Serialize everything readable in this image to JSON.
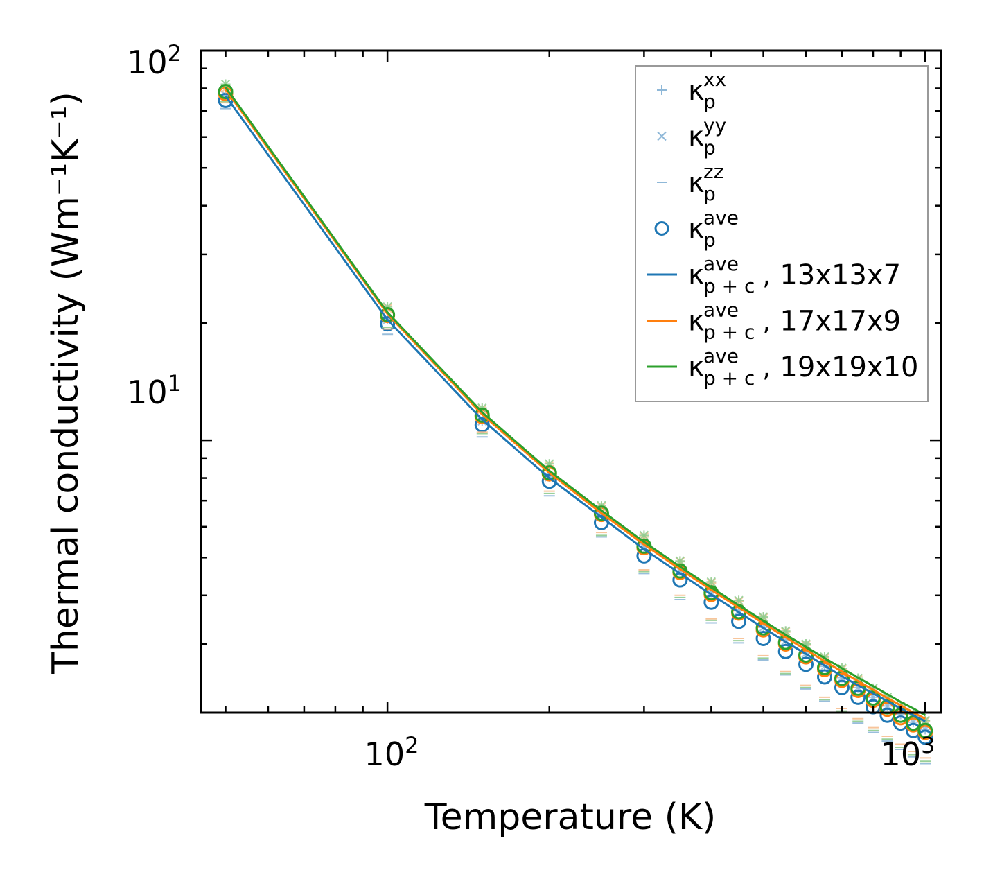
{
  "chart_data": {
    "type": "line",
    "title": "",
    "xlabel": "Temperature (K)",
    "ylabel": "Thermal conductivity (Wm⁻¹K⁻¹)",
    "xscale": "log",
    "yscale": "log",
    "xlim": [
      45,
      1070
    ],
    "ylim": [
      2.0,
      100
    ],
    "x_tick_labels": [
      {
        "base": "10",
        "exp": "2",
        "value": 100
      },
      {
        "base": "10",
        "exp": "3",
        "value": 1000
      }
    ],
    "y_tick_labels": [
      {
        "base": "10",
        "exp": "1",
        "value": 10
      },
      {
        "base": "10",
        "exp": "2",
        "value": 100
      }
    ],
    "legend_position": "top-right",
    "legend": [
      {
        "symbol": "+",
        "main": "κ",
        "sup": "xx",
        "sub": "p",
        "suffix": "",
        "color": "#8fb8d8"
      },
      {
        "symbol": "x",
        "main": "κ",
        "sup": "yy",
        "sub": "p",
        "suffix": "",
        "color": "#8fb8d8"
      },
      {
        "symbol": "_",
        "main": "κ",
        "sup": "zz",
        "sub": "p",
        "suffix": "",
        "color": "#8fb8d8"
      },
      {
        "symbol": "o",
        "main": "κ",
        "sup": "ave",
        "sub": "p",
        "suffix": "",
        "color": "#1f77b4"
      },
      {
        "symbol": "line",
        "main": "κ",
        "sup": "ave",
        "sub": "p + c",
        "suffix": ", 13x13x7",
        "color": "#1f77b4"
      },
      {
        "symbol": "line",
        "main": "κ",
        "sup": "ave",
        "sub": "p + c",
        "suffix": ", 17x17x9",
        "color": "#ff7f0e"
      },
      {
        "symbol": "line",
        "main": "κ",
        "sup": "ave",
        "sub": "p + c",
        "suffix": ", 19x19x10",
        "color": "#2ca02c"
      }
    ],
    "x": [
      50,
      100,
      150,
      200,
      250,
      300,
      350,
      400,
      450,
      500,
      550,
      600,
      650,
      700,
      750,
      800,
      850,
      900,
      950,
      1000
    ],
    "series": [
      {
        "name": "13x13x7",
        "color": "#1f77b4",
        "xx": [
          77.0,
          20.4,
          11.2,
          8.05,
          6.4,
          5.32,
          4.62,
          4.07,
          3.65,
          3.31,
          3.06,
          2.84,
          2.63,
          2.46,
          2.32,
          2.19,
          2.08,
          1.98,
          1.89,
          1.81
        ],
        "yy": [
          77.0,
          20.4,
          11.2,
          8.05,
          6.4,
          5.32,
          4.62,
          4.07,
          3.65,
          3.31,
          3.06,
          2.84,
          2.63,
          2.46,
          2.32,
          2.19,
          2.08,
          1.98,
          1.89,
          1.81
        ],
        "zz": [
          71.0,
          18.7,
          10.2,
          7.2,
          5.65,
          4.55,
          3.9,
          3.4,
          3.02,
          2.73,
          2.5,
          2.3,
          2.14,
          2.0,
          1.88,
          1.78,
          1.69,
          1.61,
          1.54,
          1.48
        ],
        "ave": [
          74.5,
          19.9,
          10.95,
          7.85,
          6.15,
          5.05,
          4.38,
          3.84,
          3.43,
          3.1,
          2.87,
          2.66,
          2.47,
          2.32,
          2.19,
          2.07,
          1.97,
          1.88,
          1.8,
          1.73
        ],
        "pc": [
          76.5,
          20.4,
          11.3,
          8.0,
          6.35,
          5.25,
          4.55,
          4.02,
          3.62,
          3.3,
          3.04,
          2.83,
          2.64,
          2.48,
          2.35,
          2.24,
          2.14,
          2.05,
          1.97,
          1.9
        ]
      },
      {
        "name": "17x17x9",
        "color": "#ff7f0e",
        "xx": [
          80.0,
          21.8,
          12.0,
          8.6,
          6.75,
          5.65,
          4.88,
          4.3,
          3.86,
          3.5,
          3.22,
          2.98,
          2.76,
          2.58,
          2.43,
          2.29,
          2.17,
          2.07,
          1.98,
          1.9
        ],
        "yy": [
          80.0,
          21.8,
          12.0,
          8.6,
          6.75,
          5.65,
          4.88,
          4.3,
          3.86,
          3.5,
          3.22,
          2.98,
          2.76,
          2.58,
          2.43,
          2.29,
          2.17,
          2.07,
          1.98,
          1.9
        ],
        "zz": [
          73.5,
          19.3,
          10.5,
          7.4,
          5.8,
          4.65,
          4.0,
          3.48,
          3.1,
          2.8,
          2.55,
          2.35,
          2.19,
          2.05,
          1.93,
          1.83,
          1.74,
          1.66,
          1.59,
          1.53
        ],
        "ave": [
          77.5,
          20.9,
          11.5,
          8.2,
          6.45,
          5.3,
          4.58,
          4.02,
          3.6,
          3.26,
          3.0,
          2.78,
          2.58,
          2.42,
          2.28,
          2.15,
          2.04,
          1.94,
          1.86,
          1.78
        ],
        "pc": [
          79.5,
          21.1,
          11.65,
          8.25,
          6.5,
          5.4,
          4.67,
          4.13,
          3.72,
          3.39,
          3.12,
          2.9,
          2.71,
          2.55,
          2.41,
          2.29,
          2.18,
          2.09,
          2.0,
          1.93
        ]
      },
      {
        "name": "19x19x10",
        "color": "#2ca02c",
        "xx": [
          82.0,
          22.0,
          12.1,
          8.7,
          6.8,
          5.7,
          4.9,
          4.33,
          3.88,
          3.52,
          3.24,
          3.0,
          2.78,
          2.6,
          2.45,
          2.31,
          2.19,
          2.08,
          1.99,
          1.91
        ],
        "yy": [
          82.0,
          22.0,
          12.1,
          8.7,
          6.8,
          5.7,
          4.9,
          4.33,
          3.88,
          3.52,
          3.24,
          3.0,
          2.78,
          2.6,
          2.45,
          2.31,
          2.19,
          2.08,
          1.99,
          1.91
        ],
        "zz": [
          74.0,
          19.5,
          10.4,
          7.3,
          5.7,
          4.6,
          3.95,
          3.45,
          3.06,
          2.76,
          2.52,
          2.32,
          2.16,
          2.02,
          1.9,
          1.8,
          1.71,
          1.63,
          1.56,
          1.5
        ],
        "ave": [
          78.5,
          21.0,
          11.6,
          8.25,
          6.5,
          5.35,
          4.62,
          4.06,
          3.63,
          3.3,
          3.03,
          2.81,
          2.61,
          2.45,
          2.31,
          2.18,
          2.07,
          1.97,
          1.88,
          1.8
        ],
        "pc": [
          80.5,
          21.3,
          11.8,
          8.35,
          6.6,
          5.48,
          4.74,
          4.19,
          3.77,
          3.44,
          3.17,
          2.95,
          2.76,
          2.6,
          2.46,
          2.34,
          2.23,
          2.13,
          2.05,
          1.97
        ]
      }
    ]
  }
}
